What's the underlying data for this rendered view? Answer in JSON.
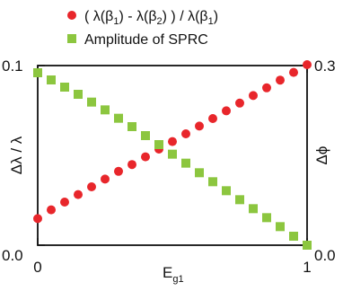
{
  "chart_data": {
    "type": "scatter",
    "x_label_main": "E",
    "x_label_sub": "g1",
    "y_left_label": "Δλ / λ",
    "y_right_label": "Δϕ",
    "x_ticks": [
      "0",
      "1"
    ],
    "y_left_ticks": [
      "0.0",
      "0.1"
    ],
    "y_right_ticks": [
      "0.0",
      "0.3"
    ],
    "xlim": [
      0,
      1
    ],
    "y_left_lim": [
      0,
      0.1
    ],
    "y_right_lim": [
      0,
      0.3
    ],
    "legend_position": "top",
    "series": [
      {
        "legend_parts": [
          "( λ(β",
          "1",
          ") - λ(β",
          "2",
          ") ) / λ(β",
          "1",
          ")"
        ],
        "axis": "left",
        "marker": "circle",
        "color": "#e8262b",
        "x": [
          0,
          0.05,
          0.1,
          0.15,
          0.2,
          0.25,
          0.3,
          0.35,
          0.4,
          0.45,
          0.5,
          0.55,
          0.6,
          0.65,
          0.7,
          0.75,
          0.8,
          0.85,
          0.9,
          0.95,
          1.0
        ],
        "y": [
          0.0148,
          0.0197,
          0.024,
          0.0282,
          0.0325,
          0.0368,
          0.0411,
          0.0449,
          0.0492,
          0.0535,
          0.0577,
          0.062,
          0.0663,
          0.0705,
          0.0748,
          0.0791,
          0.0833,
          0.0876,
          0.0919,
          0.0962,
          0.1005
        ]
      },
      {
        "name": "Amplitude of SPRC",
        "axis": "right",
        "marker": "square",
        "color": "#8cc63f",
        "x": [
          0,
          0.05,
          0.1,
          0.15,
          0.2,
          0.25,
          0.3,
          0.35,
          0.4,
          0.45,
          0.5,
          0.55,
          0.6,
          0.65,
          0.7,
          0.75,
          0.8,
          0.85,
          0.9,
          0.95,
          1.0
        ],
        "y": [
          0.288,
          0.276,
          0.264,
          0.252,
          0.239,
          0.226,
          0.212,
          0.198,
          0.183,
          0.168,
          0.152,
          0.137,
          0.121,
          0.106,
          0.091,
          0.076,
          0.061,
          0.046,
          0.031,
          0.015,
          0.0
        ]
      }
    ]
  }
}
